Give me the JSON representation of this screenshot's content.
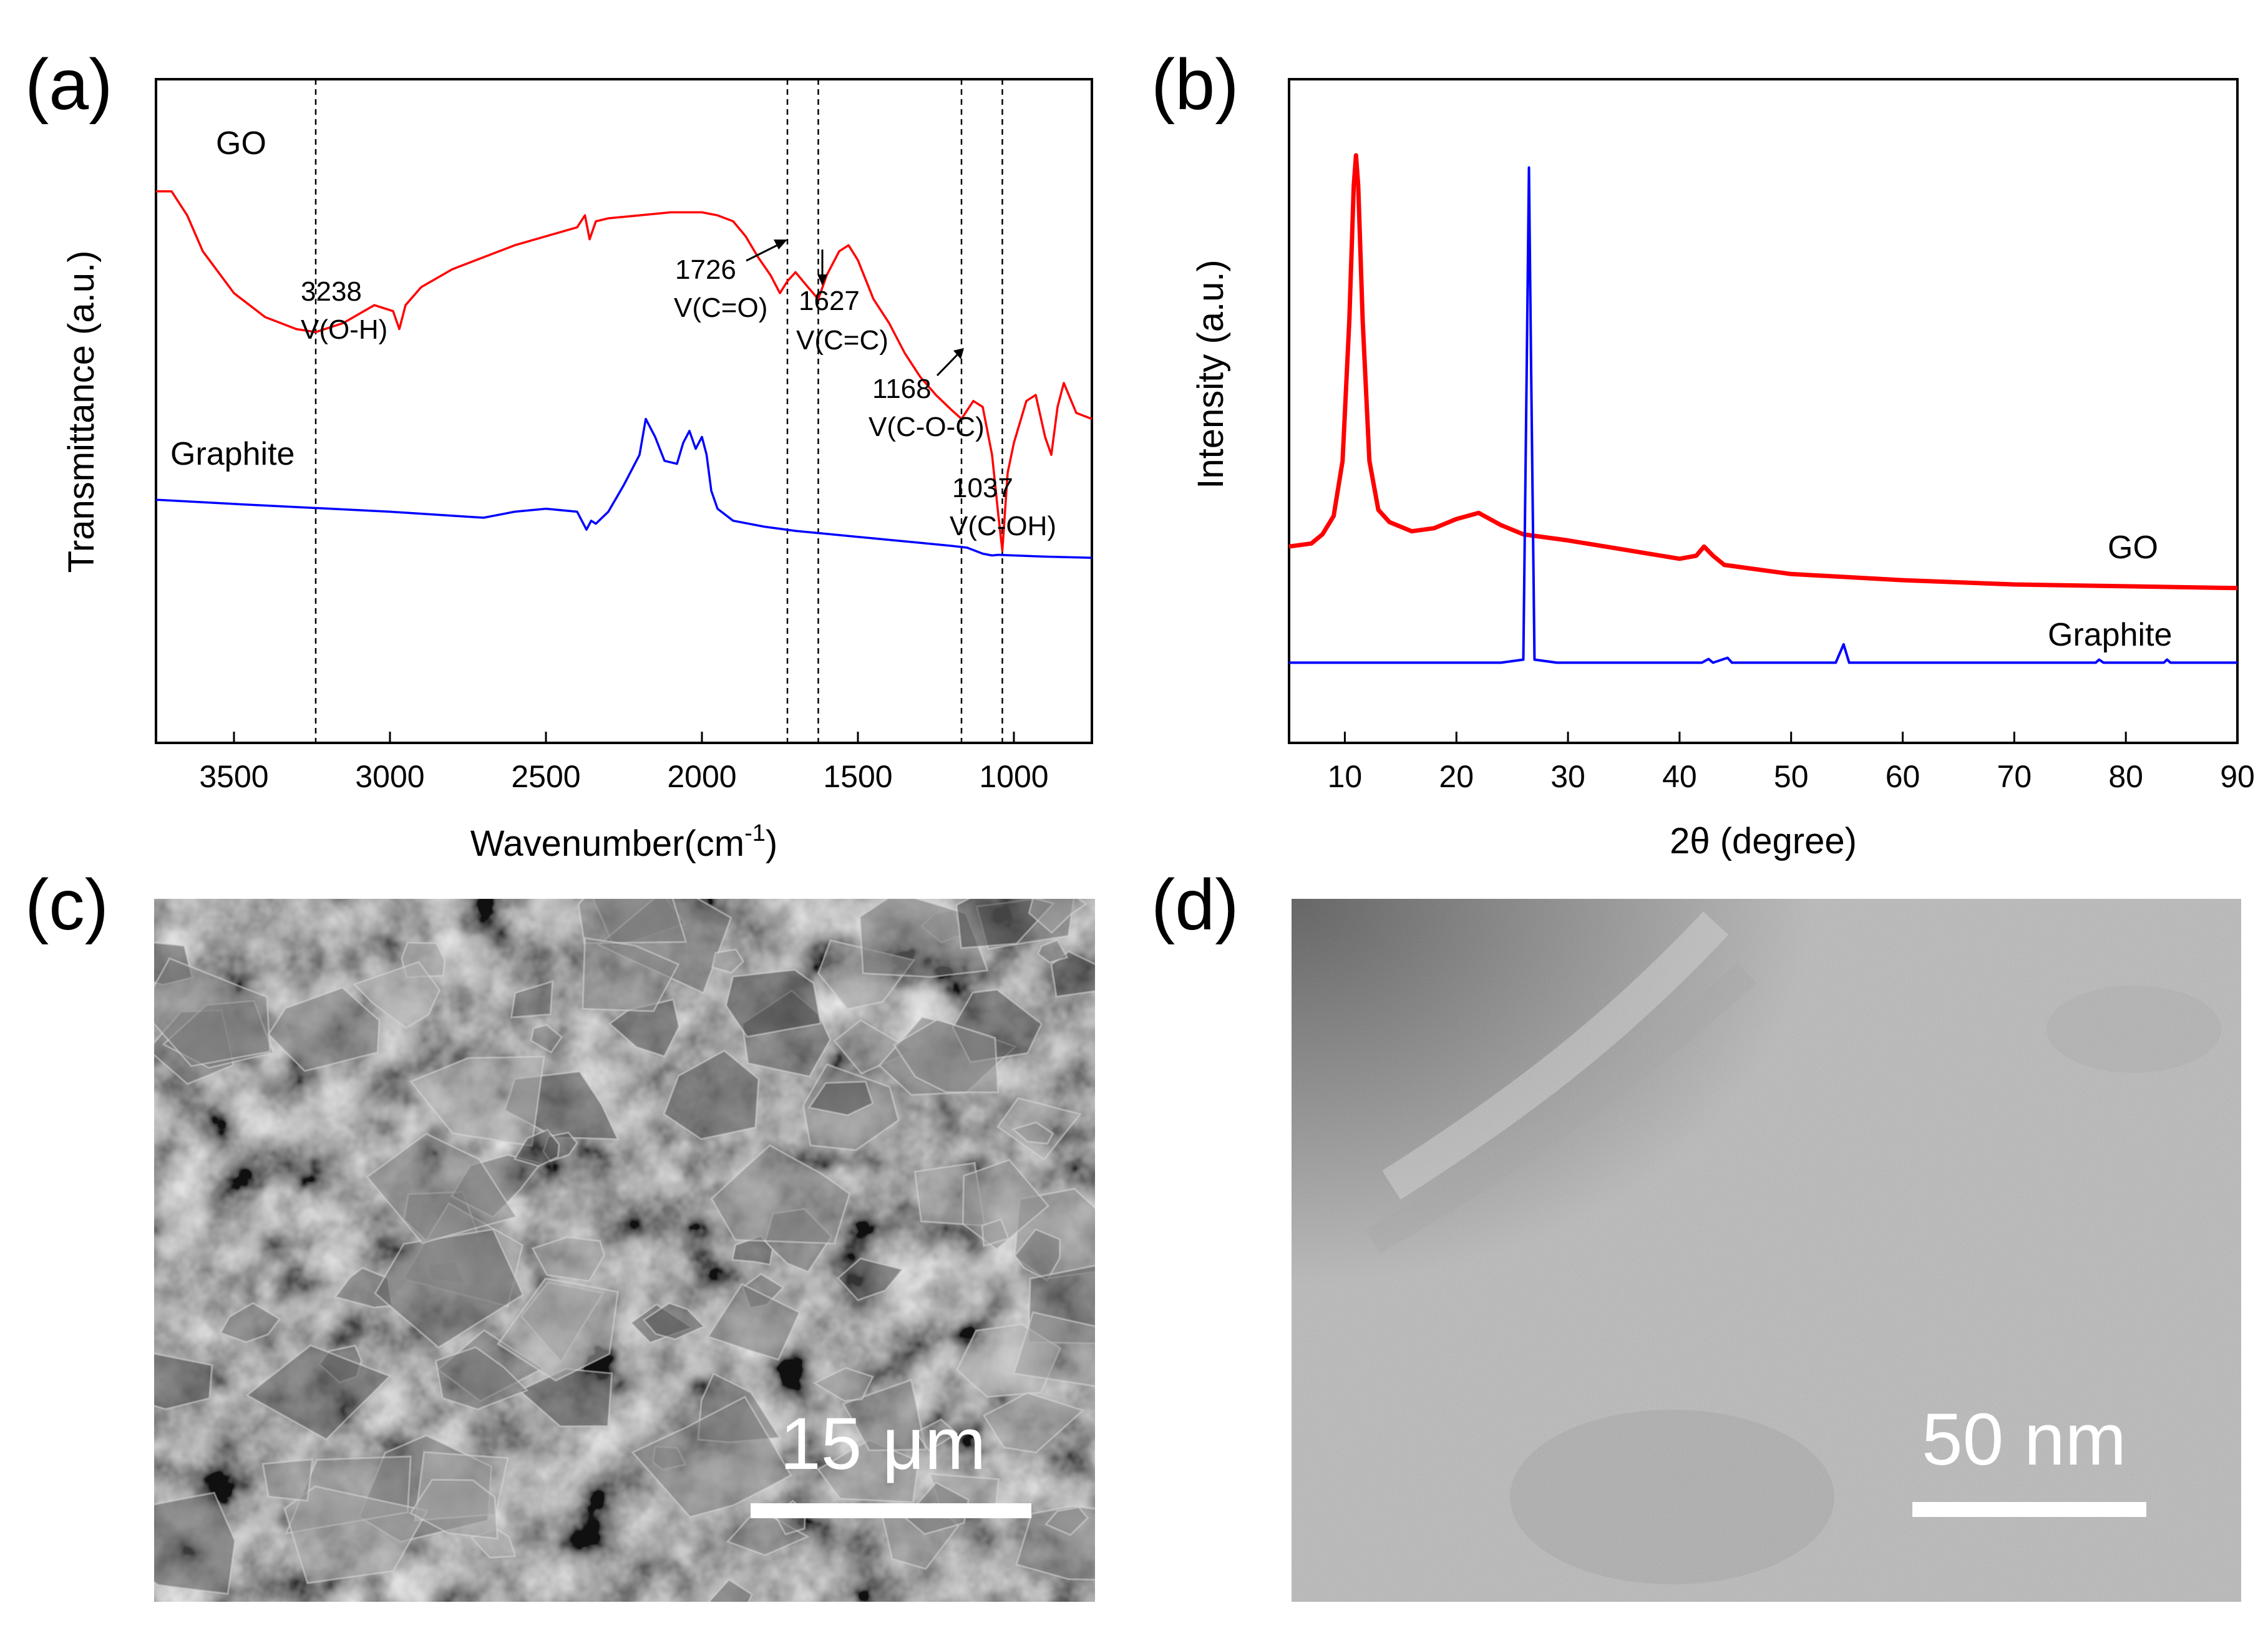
{
  "chart_data": [
    {
      "panel": "(a)",
      "type": "line",
      "xlabel_main": "Wavenumber(cm",
      "xlabel_sup": "-1",
      "xlabel_end": ")",
      "ylabel": "Transmittance (a.u.)",
      "xlim": [
        3750,
        750
      ],
      "x_reversed": true,
      "xticks": [
        3500,
        3000,
        2500,
        2000,
        1500,
        1000
      ],
      "y_units": "arbitrary",
      "ylim": [
        0,
        100
      ],
      "grid": false,
      "series": [
        {
          "name": "GO",
          "color": "#ff0000",
          "x": [
            3750,
            3700,
            3650,
            3600,
            3500,
            3400,
            3300,
            3238,
            3150,
            3050,
            2990,
            2970,
            2950,
            2900,
            2800,
            2700,
            2600,
            2500,
            2400,
            2375,
            2360,
            2340,
            2300,
            2200,
            2100,
            2000,
            1950,
            1900,
            1860,
            1820,
            1780,
            1750,
            1726,
            1700,
            1660,
            1627,
            1600,
            1560,
            1530,
            1500,
            1450,
            1400,
            1350,
            1300,
            1250,
            1200,
            1168,
            1130,
            1100,
            1070,
            1050,
            1037,
            1020,
            1000,
            960,
            930,
            900,
            880,
            860,
            840,
            800,
            750
          ],
          "y": [
            92,
            92,
            88,
            82,
            75,
            71,
            69,
            68.5,
            70,
            73,
            72,
            69,
            73,
            76,
            79,
            81,
            83,
            84.5,
            86,
            88,
            84,
            87,
            87.5,
            88,
            88.5,
            88.5,
            88,
            87,
            84.5,
            81,
            78,
            75,
            77,
            78.5,
            76,
            74,
            78,
            82,
            83,
            80.5,
            74,
            70,
            65,
            61,
            58,
            55.5,
            54,
            57,
            56,
            48,
            38,
            32,
            45,
            50,
            57,
            58,
            51,
            48,
            56,
            60,
            55,
            54
          ]
        },
        {
          "name": "Graphite",
          "color": "#0000ff",
          "x": [
            3750,
            3500,
            3000,
            2700,
            2650,
            2600,
            2500,
            2400,
            2370,
            2355,
            2340,
            2300,
            2250,
            2200,
            2180,
            2150,
            2120,
            2080,
            2060,
            2040,
            2020,
            2000,
            1985,
            1970,
            1950,
            1900,
            1800,
            1700,
            1600,
            1500,
            1400,
            1300,
            1200,
            1150,
            1100,
            1070,
            1050,
            1000,
            900,
            750
          ],
          "y": [
            40.5,
            39.8,
            38.5,
            37.5,
            38,
            38.5,
            39,
            38.5,
            35.5,
            37,
            36.5,
            38.5,
            43,
            48,
            54,
            51,
            47,
            46.5,
            50,
            52,
            49,
            51,
            48,
            42,
            39,
            37,
            36,
            35.3,
            34.8,
            34.3,
            33.8,
            33.3,
            32.8,
            32.5,
            31.5,
            31.2,
            31.3,
            31.2,
            31,
            30.8
          ]
        }
      ],
      "vlines": [
        3238,
        1726,
        1627,
        1168,
        1037
      ],
      "annotations": [
        {
          "line1": "3238",
          "line2": "V(O-H)"
        },
        {
          "line1": "1726",
          "line2": "V(C=O)"
        },
        {
          "line1": "1627",
          "line2": "V(C=C)"
        },
        {
          "line1": "1168",
          "line2": "V(C-O-C)"
        },
        {
          "line1": "1037",
          "line2": "V(C-OH)"
        }
      ]
    },
    {
      "panel": "(b)",
      "type": "line",
      "xlabel": "2θ (degree)",
      "ylabel": "Intensity (a.u.)",
      "xlim": [
        5,
        90
      ],
      "xticks": [
        10,
        20,
        30,
        40,
        50,
        60,
        70,
        80,
        90
      ],
      "y_units": "arbitrary",
      "ylim": [
        0,
        100
      ],
      "grid": false,
      "series": [
        {
          "name": "GO",
          "color": "#ff0000",
          "x": [
            5,
            7,
            8,
            9,
            9.8,
            10.4,
            10.8,
            11,
            11.2,
            11.6,
            12.2,
            13,
            14,
            16,
            18,
            20,
            22,
            24,
            26,
            28,
            30,
            35,
            40,
            41.5,
            42.2,
            43,
            44,
            50,
            60,
            70,
            80,
            90
          ],
          "y": [
            31,
            31.5,
            33,
            36,
            45,
            68,
            90,
            95,
            90,
            68,
            45,
            37,
            35,
            33.5,
            34,
            35.5,
            36.5,
            34.5,
            33,
            32.5,
            32,
            30.5,
            29,
            29.5,
            31,
            29.5,
            28,
            26.5,
            25.5,
            24.8,
            24.5,
            24.2
          ]
        },
        {
          "name": "Graphite",
          "color": "#0000ff",
          "x": [
            5,
            24,
            26,
            26.3,
            26.5,
            26.7,
            27,
            29,
            42,
            42.6,
            43,
            44.3,
            44.7,
            45,
            54,
            54.7,
            55.2,
            60,
            77.3,
            77.6,
            78,
            83.4,
            83.7,
            84,
            90
          ],
          "y": [
            12,
            12,
            12.5,
            60,
            93,
            60,
            12.5,
            12,
            12,
            12.6,
            12,
            12.8,
            12,
            12,
            12,
            15,
            12,
            12,
            12,
            12.5,
            12,
            12,
            12.5,
            12,
            12
          ]
        }
      ]
    }
  ],
  "panel_c": {
    "label": "(c)",
    "scale_text": "15 μm"
  },
  "panel_d": {
    "label": "(d)",
    "scale_text": "50 nm"
  },
  "colors": {
    "go": "#ff0000",
    "graphite": "#0000ff",
    "sem_bg": "#6e6e6e",
    "tem_bg": "#b9b9b9"
  }
}
